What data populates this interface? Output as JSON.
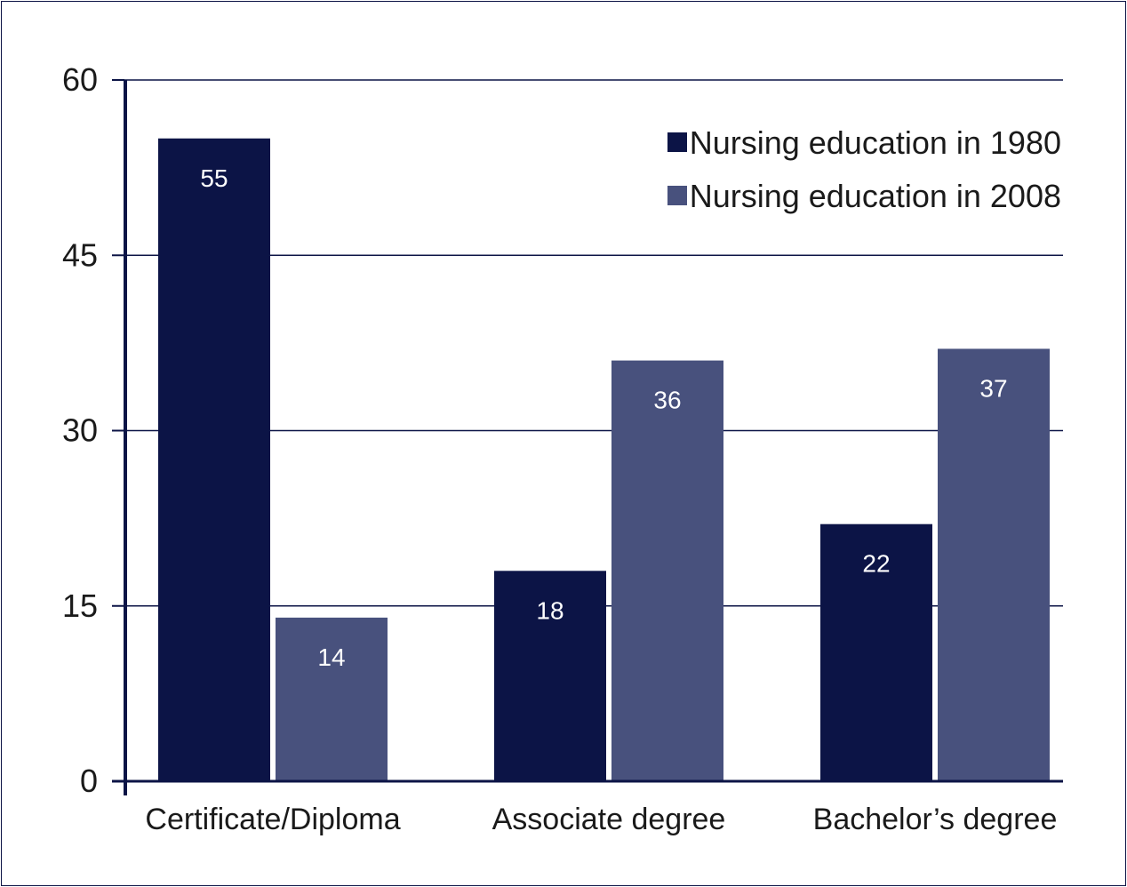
{
  "chart_data": {
    "type": "bar",
    "title": "",
    "xlabel": "",
    "ylabel": "",
    "ylim": [
      0,
      60
    ],
    "yticks": [
      0,
      15,
      30,
      45,
      60
    ],
    "grid": true,
    "legend_position": "top-right",
    "categories": [
      "Certificate/Diploma",
      "Associate degree",
      "Bachelor’s degree"
    ],
    "series": [
      {
        "name": "Nursing education in 1980",
        "color": "#0c1446",
        "values": [
          55,
          18,
          22
        ]
      },
      {
        "name": "Nursing education in 2008",
        "color": "#48517d",
        "values": [
          14,
          36,
          37
        ]
      }
    ]
  }
}
